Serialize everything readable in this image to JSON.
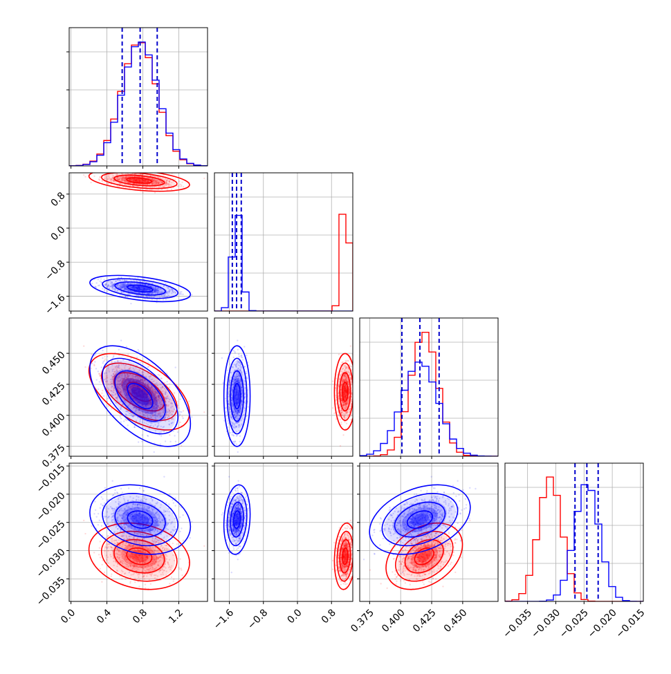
{
  "chart_data": {
    "type": "corner",
    "title": "",
    "grid": true,
    "colors": {
      "dataset_a": "#0000ff",
      "dataset_b": "#ff0000",
      "quantile_lines": "#0000cc"
    },
    "params": [
      {
        "index": 0,
        "range": [
          -0.02,
          1.52
        ],
        "ticks": [
          0.0,
          0.4,
          0.8,
          1.2
        ],
        "tick_labels": [
          "0.0",
          "0.4",
          "0.8",
          "1.2"
        ],
        "a": {
          "mean": 0.77,
          "sd": 0.2,
          "quantiles": [
            0.57,
            0.77,
            0.96
          ]
        },
        "b": {
          "mean": 0.76,
          "sd": 0.2
        }
      },
      {
        "index": 1,
        "range": [
          -1.95,
          1.3
        ],
        "ticks": [
          -1.6,
          -0.8,
          0.0,
          0.8
        ],
        "tick_labels": [
          "−1.6",
          "−0.8",
          "0.0",
          "0.8"
        ],
        "a": {
          "mean": -1.42,
          "sd": 0.11,
          "quantiles": [
            -1.53,
            -1.43,
            -1.32
          ]
        },
        "b": {
          "mean": 1.12,
          "sd": 0.09
        }
      },
      {
        "index": 2,
        "range": [
          0.367,
          0.4785
        ],
        "ticks": [
          0.375,
          0.4,
          0.425,
          0.45
        ],
        "tick_labels": [
          "0.375",
          "0.400",
          "0.425",
          "0.450"
        ],
        "a": {
          "mean": 0.4155,
          "sd": 0.0145,
          "quantiles": [
            0.401,
            0.4155,
            0.431
          ]
        },
        "b": {
          "mean": 0.419,
          "sd": 0.011
        }
      },
      {
        "index": 3,
        "range": [
          -0.039,
          -0.0145
        ],
        "ticks": [
          -0.035,
          -0.03,
          -0.025,
          -0.02,
          -0.015
        ],
        "tick_labels": [
          "−0.035",
          "−0.030",
          "−0.025",
          "−0.020",
          "−0.015"
        ],
        "a": {
          "mean": -0.0245,
          "sd": 0.0022,
          "quantiles": [
            -0.0266,
            -0.0245,
            -0.0225
          ]
        },
        "b": {
          "mean": -0.031,
          "sd": 0.0021
        }
      }
    ],
    "correlations": {
      "1_0": {
        "a": -0.45,
        "b": -0.4
      },
      "2_0": {
        "a": -0.55,
        "b": -0.55
      },
      "2_1": {
        "a": 0.0,
        "b": 0.0
      },
      "3_0": {
        "a": -0.2,
        "b": -0.2
      },
      "3_1": {
        "a": 0.15,
        "b": 0.15
      },
      "3_2": {
        "a": 0.35,
        "b": 0.35
      }
    },
    "hist_bins": 20,
    "contour_levels_sigma": [
      0.5,
      1.0,
      1.5,
      2.0
    ]
  }
}
